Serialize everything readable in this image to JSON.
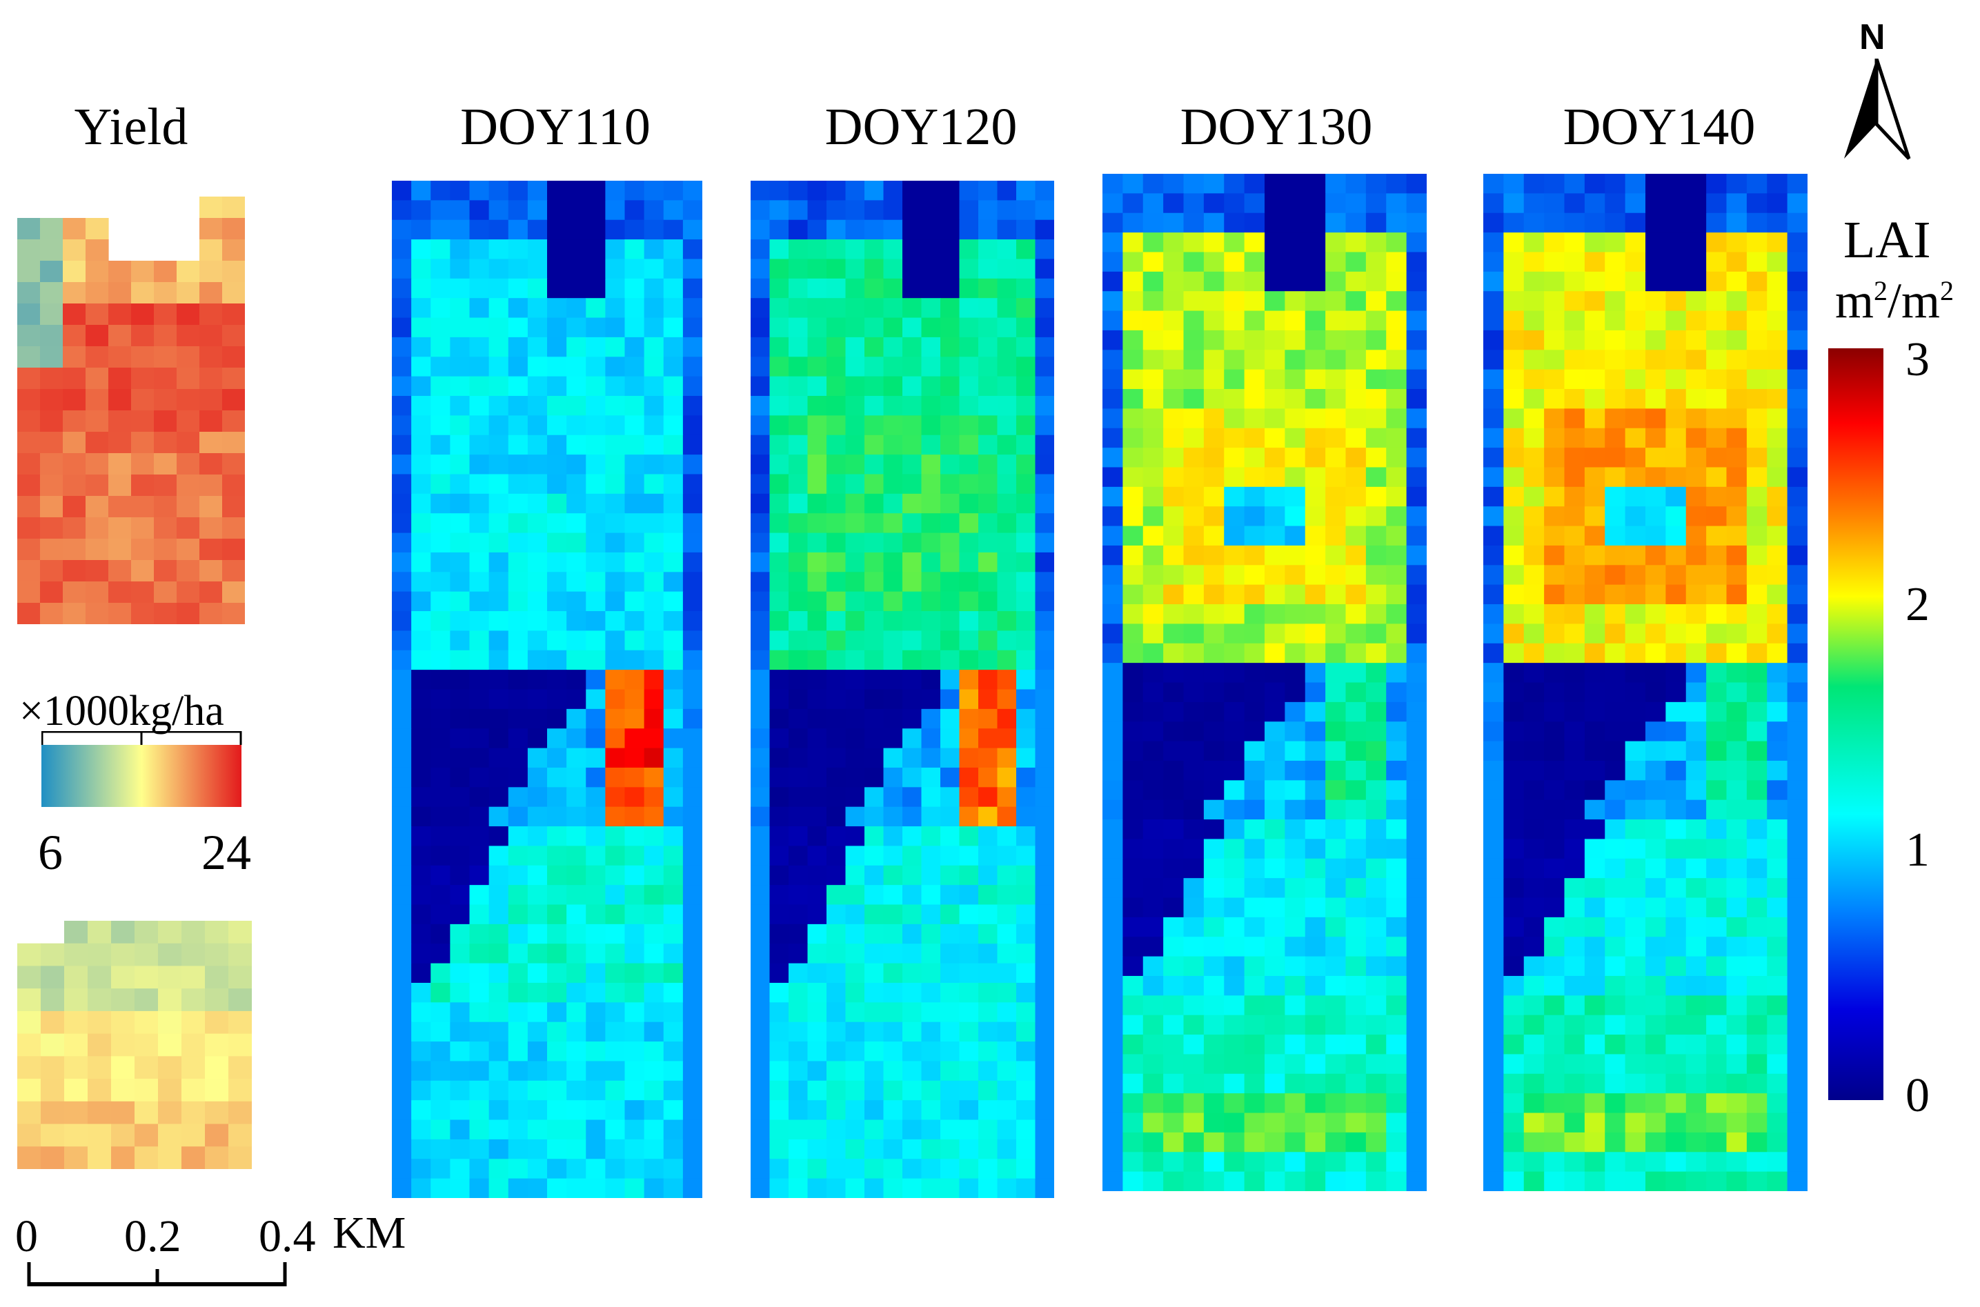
{
  "yield": {
    "title": "Yield",
    "legend_unit": "×1000kg/ha",
    "legend_min": "6",
    "legend_max": "24",
    "colormap": [
      "#2b8cbe",
      "#ffff8c",
      "#e31a1c"
    ]
  },
  "lai_panels": [
    {
      "title": "DOY110"
    },
    {
      "title": "DOY120"
    },
    {
      "title": "DOY130"
    },
    {
      "title": "DOY140"
    }
  ],
  "lai_legend": {
    "title": "LAI",
    "unit_base": "m",
    "unit_sup": "2",
    "unit_sep": "/",
    "ticks": [
      "3",
      "2",
      "1",
      "0"
    ],
    "colormap": [
      "#8b0000",
      "#ff0000",
      "#ff8000",
      "#ffff00",
      "#00e676",
      "#00ffff",
      "#0080ff",
      "#0000c8",
      "#00008b"
    ]
  },
  "north_arrow": {
    "label": "N"
  },
  "scale_bar": {
    "ticks": [
      "0",
      "0.2",
      "0.4"
    ],
    "unit": "KM"
  }
}
